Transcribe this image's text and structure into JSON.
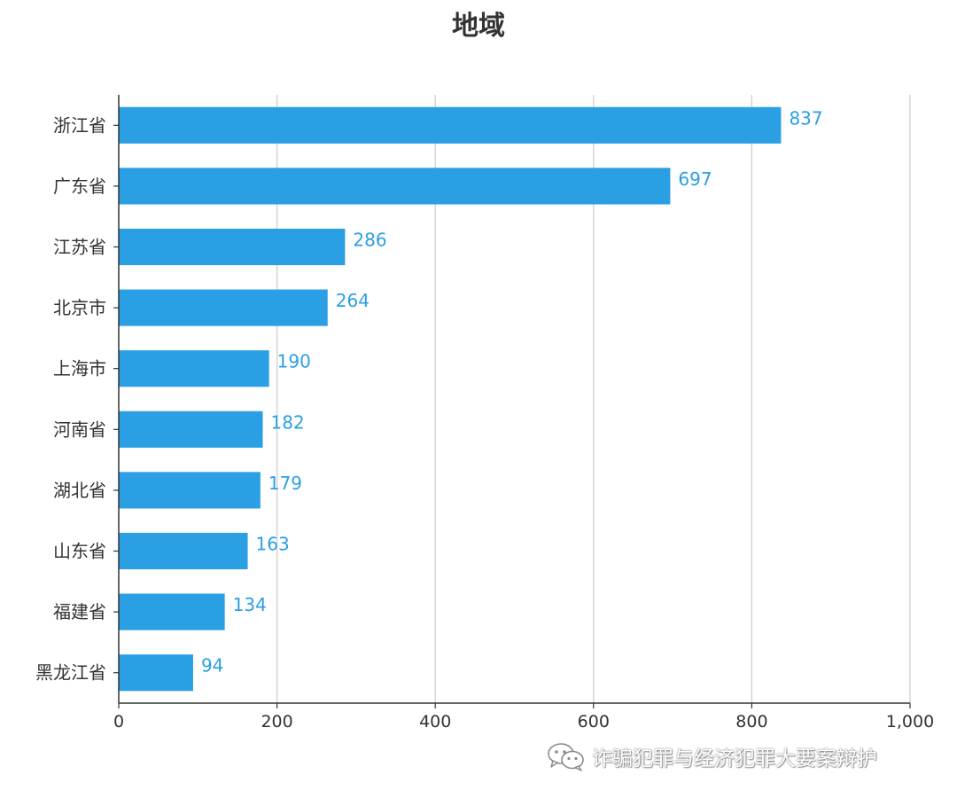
{
  "chart_data": {
    "type": "bar",
    "orientation": "horizontal",
    "title": "地域",
    "categories": [
      "浙江省",
      "广东省",
      "江苏省",
      "北京市",
      "上海市",
      "河南省",
      "湖北省",
      "山东省",
      "福建省",
      "黑龙江省"
    ],
    "values": [
      837,
      697,
      286,
      264,
      190,
      182,
      179,
      163,
      134,
      94
    ],
    "xlim": [
      0,
      1000
    ],
    "xticks": [
      "0",
      "200",
      "400",
      "600",
      "800",
      "1,000"
    ],
    "xtick_values": [
      0,
      200,
      400,
      600,
      800,
      1000
    ],
    "grid": "vertical",
    "bar_color": "#2b9fe4",
    "label_color": "#2b9fe4",
    "xlabel": "",
    "ylabel": ""
  },
  "watermark": {
    "text": "诈骗犯罪与经济犯罪大要案辩护",
    "icon": "wechat-icon"
  }
}
